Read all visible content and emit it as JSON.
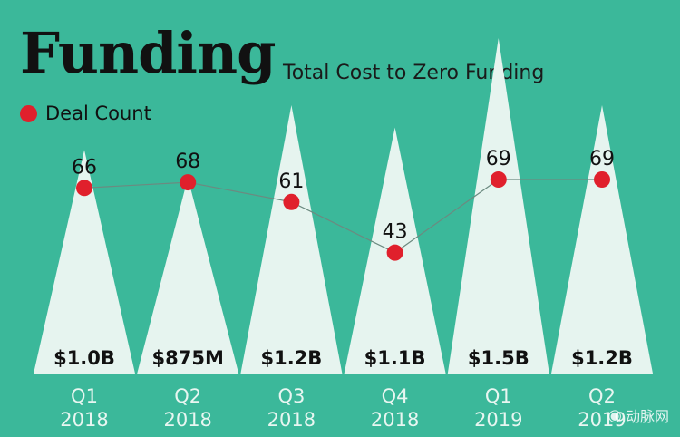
{
  "chart_data": {
    "type": "bar",
    "title": "Funding",
    "subtitle": "Total Cost to Zero Funding",
    "categories": [
      {
        "quarter": "Q1",
        "year": "2018"
      },
      {
        "quarter": "Q2",
        "year": "2018"
      },
      {
        "quarter": "Q3",
        "year": "2018"
      },
      {
        "quarter": "Q4",
        "year": "2018"
      },
      {
        "quarter": "Q1",
        "year": "2019"
      },
      {
        "quarter": "Q2",
        "year": "2019"
      }
    ],
    "series": [
      {
        "kind": "funding",
        "values": [
          1000,
          875,
          1200,
          1100,
          1500,
          1200
        ],
        "unit": "$M",
        "labels": [
          "$1.0B",
          "$875M",
          "$1.2B",
          "$1.1B",
          "$1.5B",
          "$1.2B"
        ]
      },
      {
        "name": "Deal Count",
        "kind": "deals",
        "values": [
          66,
          68,
          61,
          43,
          69,
          69
        ],
        "labels": [
          "66",
          "68",
          "61",
          "43",
          "69",
          "69"
        ]
      }
    ],
    "funding_range": [
      0,
      1500
    ],
    "deal_range": [
      0,
      69
    ],
    "legend_position": "top-left",
    "grid": false
  },
  "colors": {
    "background": "#3bb89a",
    "triangle": "#e6f4ef",
    "dot": "#e0202c",
    "line": "#6c8a80",
    "axis_text": "#e8f6f1"
  },
  "watermark": {
    "icon": "wechat-icon",
    "text": "动脉网"
  }
}
